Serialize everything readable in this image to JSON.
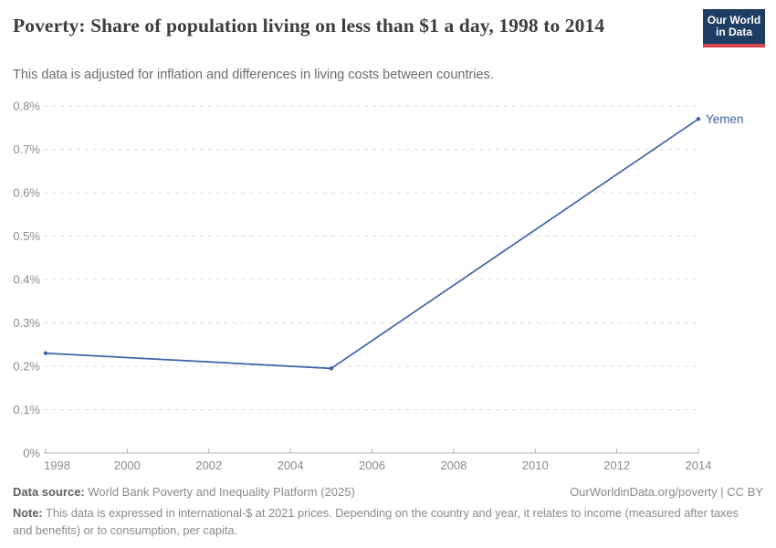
{
  "header": {
    "title": "Poverty: Share of population living on less than $1 a day, 1998 to 2014",
    "subtitle": "This data is adjusted for inflation and differences in living costs between countries.",
    "logo_line1": "Our World",
    "logo_line2": "in Data"
  },
  "chart_data": {
    "type": "line",
    "title": "Poverty: Share of population living on less than $1 a day, 1998 to 2014",
    "x": [
      1998,
      2005,
      2014
    ],
    "series": [
      {
        "name": "Yemen",
        "color": "#3d62a8",
        "values": [
          0.23,
          0.195,
          0.77
        ]
      }
    ],
    "unit": "%",
    "xlabel": "",
    "ylabel": "",
    "xlim": [
      1998,
      2014
    ],
    "ylim": [
      0,
      0.8
    ],
    "x_ticks": [
      1998,
      2000,
      2002,
      2004,
      2006,
      2008,
      2010,
      2012,
      2014
    ],
    "y_ticks": [
      0,
      0.1,
      0.2,
      0.3,
      0.4,
      0.5,
      0.6,
      0.7,
      0.8
    ],
    "y_tick_suffix": "%",
    "grid": "horizontal-dashed",
    "legend": "line-end-label"
  },
  "colors": {
    "line": "#3d62a8",
    "grid": "#dcdcdc",
    "axis": "#b3b3b3",
    "tick_text": "#8b8b8b",
    "logo_bg": "#1d3d63",
    "logo_accent": "#d6434a"
  },
  "footer": {
    "source_label": "Data source:",
    "source_text": " World Bank Poverty and Inequality Platform (2025)",
    "link_text": "OurWorldinData.org/poverty | CC BY",
    "note_label": "Note:",
    "note_text": " This data is expressed in international-$ at 2021 prices. Depending on the country and year, it relates to income (measured after taxes and benefits) or to consumption, per capita."
  }
}
